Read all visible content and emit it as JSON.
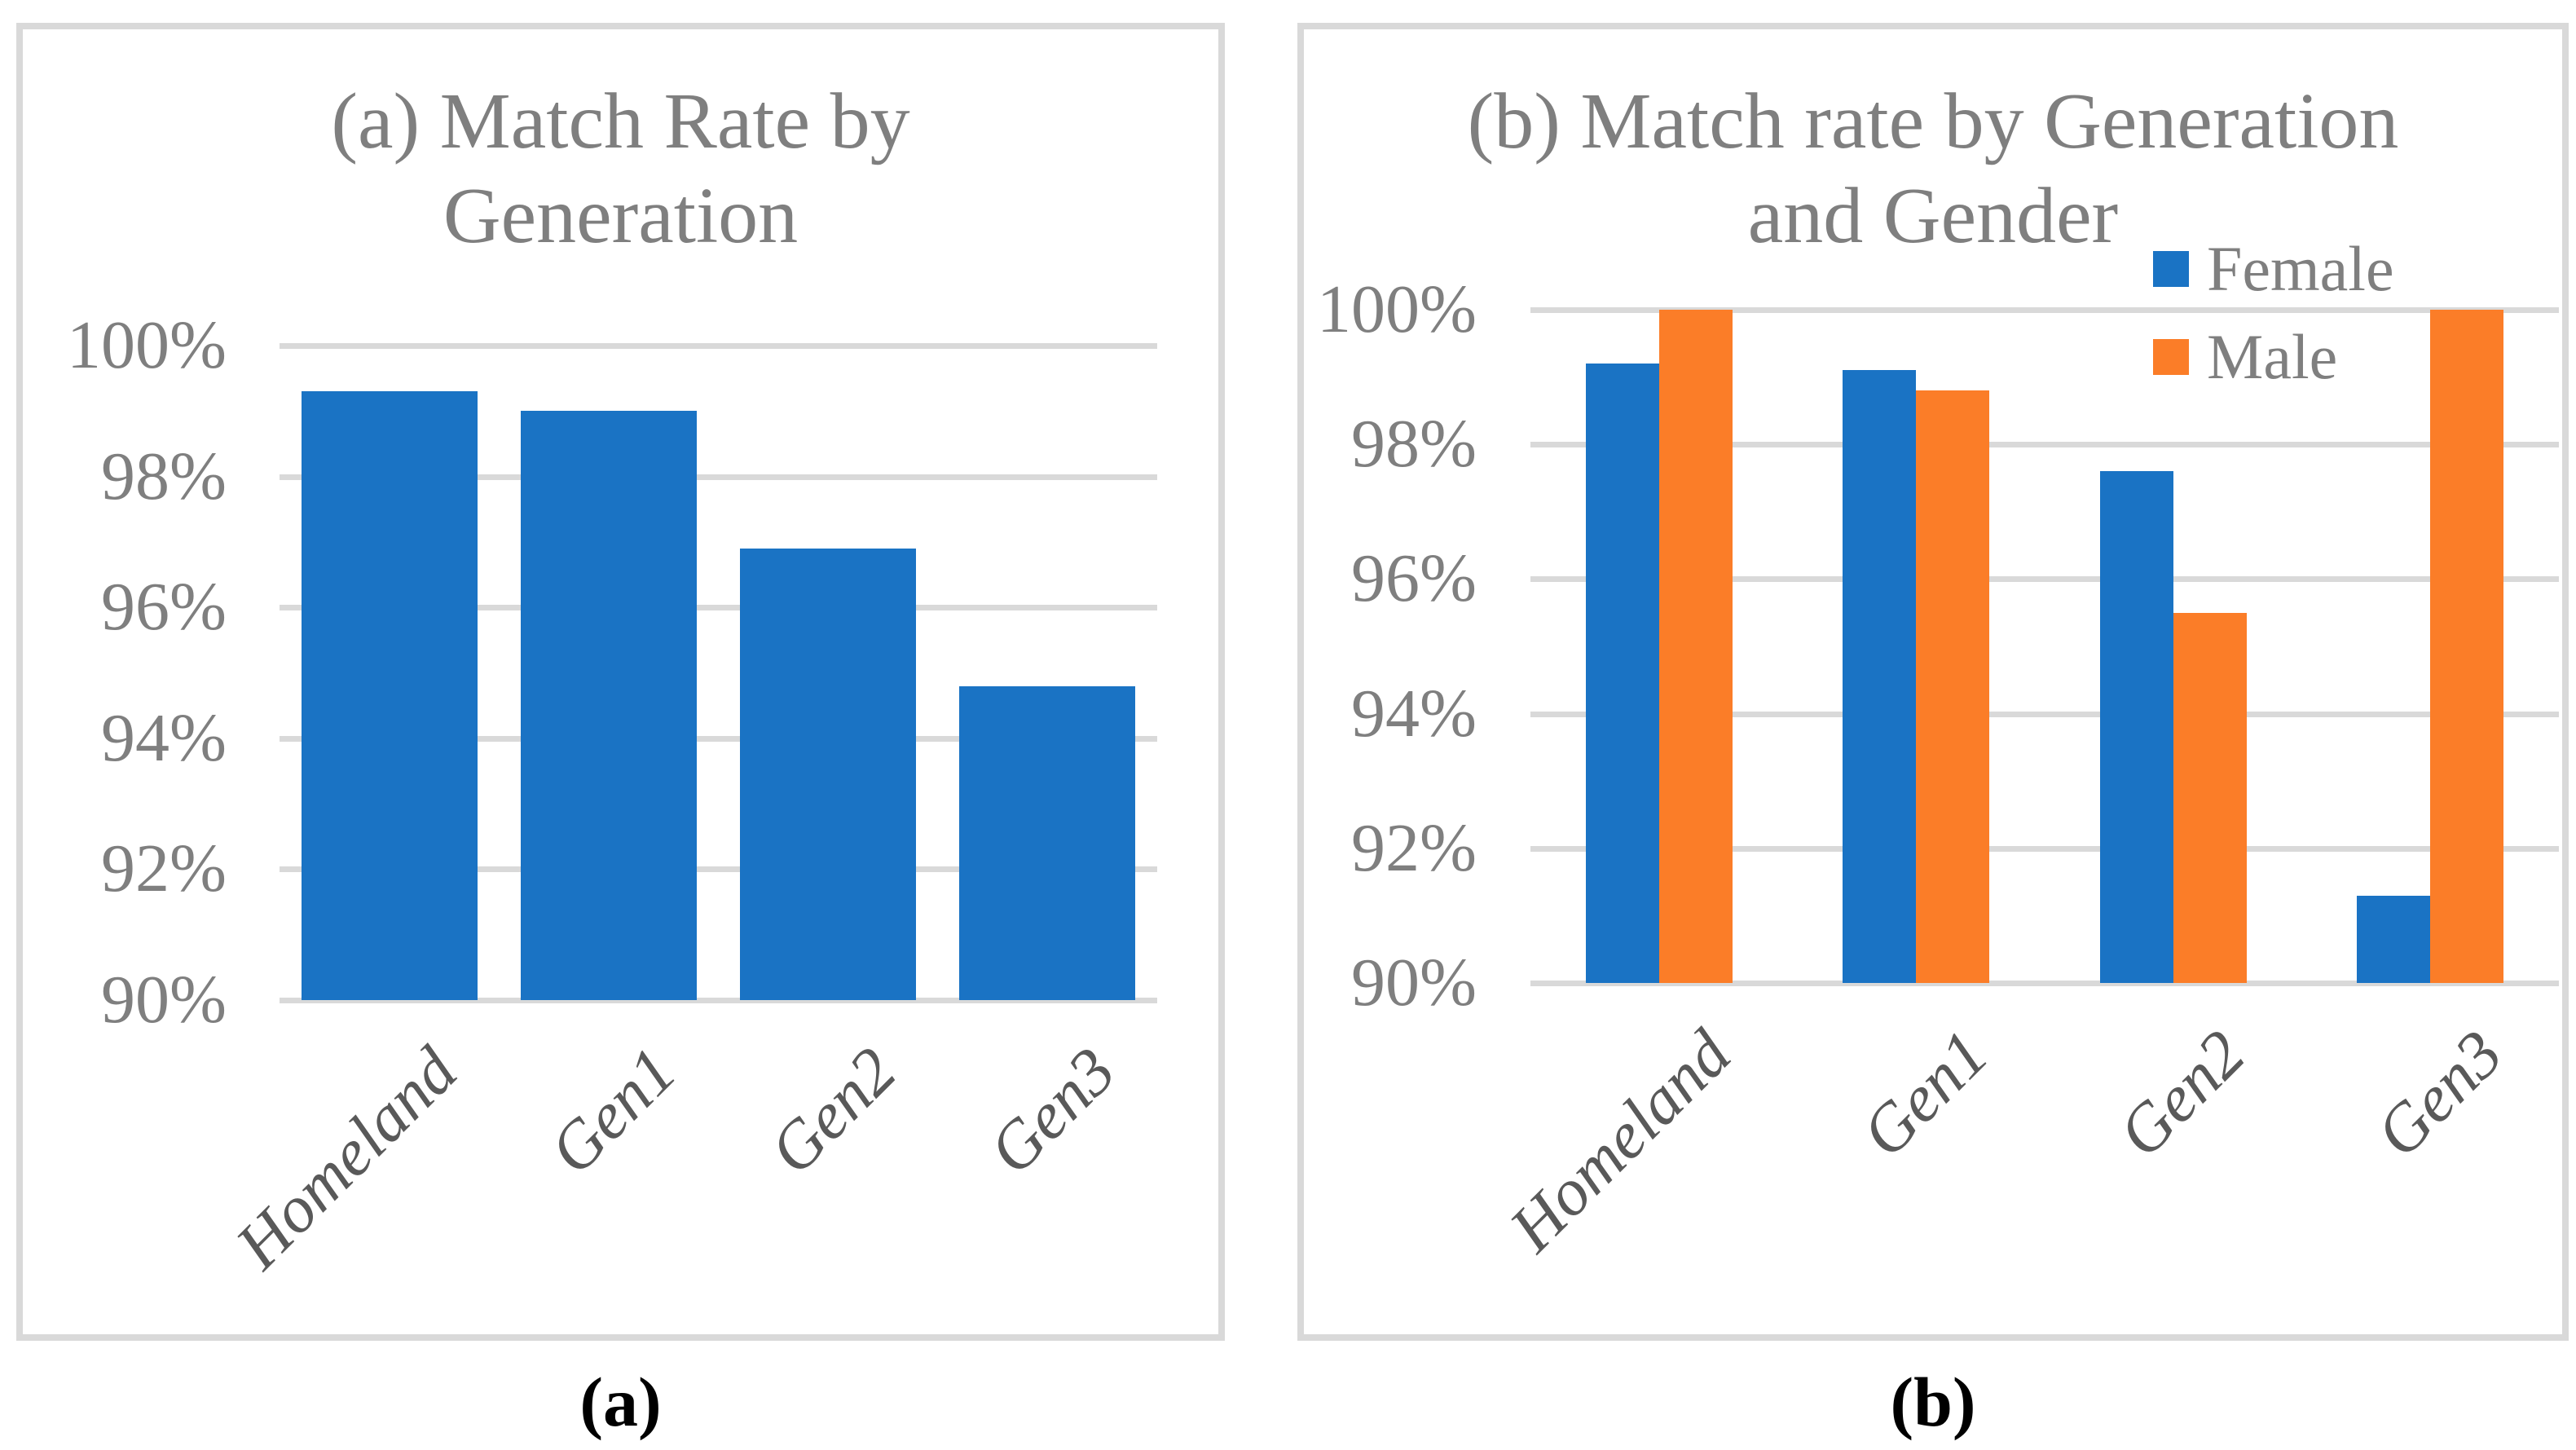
{
  "captions": {
    "a": "(a)",
    "b": "(b)"
  },
  "palette": {
    "bar_blue": "#1a73c4",
    "bar_orange": "#fb7d28",
    "gridline": "#d9d9d9",
    "panel_border": "#d9d9d9",
    "axis_tick_text": "#7f7f7f",
    "category_text": "#595959",
    "title_text": "#7f7f7f",
    "caption_text": "#000000",
    "background": "#ffffff"
  },
  "chart_data": [
    {
      "id": "chart-a",
      "type": "bar",
      "title_lines": [
        "(a) Match Rate by",
        "Generation"
      ],
      "categories": [
        "Homeland",
        "Gen1",
        "Gen2",
        "Gen3"
      ],
      "series": [
        {
          "name": "",
          "color": "#1a73c4",
          "values": [
            99.3,
            99.0,
            96.9,
            94.8
          ]
        }
      ],
      "ylim": [
        90,
        100
      ],
      "y_tick_labels": [
        "100%",
        "98%",
        "96%",
        "94%",
        "92%",
        "90%"
      ],
      "grid": true,
      "legend": false
    },
    {
      "id": "chart-b",
      "type": "grouped-bar",
      "title_lines": [
        "(b) Match rate by Generation",
        "and Gender"
      ],
      "categories": [
        "Homeland",
        "Gen1",
        "Gen2",
        "Gen3"
      ],
      "series": [
        {
          "name": "Female",
          "color": "#1a73c4",
          "values": [
            99.2,
            99.1,
            97.6,
            91.3
          ]
        },
        {
          "name": "Male",
          "color": "#fb7d28",
          "values": [
            100.0,
            98.8,
            95.5,
            100.0
          ]
        }
      ],
      "ylim": [
        90,
        100
      ],
      "y_tick_labels": [
        "100%",
        "98%",
        "96%",
        "94%",
        "92%",
        "90%"
      ],
      "grid": true,
      "legend": true,
      "legend_position": "top-right"
    }
  ]
}
